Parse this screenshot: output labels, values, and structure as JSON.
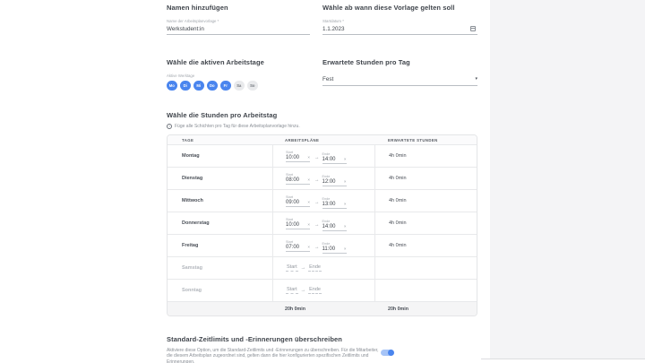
{
  "icons": {
    "close": "×",
    "arrow": "→",
    "caret": "▾",
    "info": "i"
  },
  "colors": {
    "accent_blue": "#4a85ee",
    "chip_inactive_bg": "#e9eaec",
    "toggle_track": "#a6c4f7",
    "side_panel_bg": "#f4f4f6"
  },
  "form": {
    "name_section": {
      "title": "Namen hinzufügen",
      "field_label": "Name der Arbeitsplanvorlage *",
      "field_value": "Werkstudent:in"
    },
    "date_section": {
      "title": "Wähle ab wann diese Vorlage gelten soll",
      "field_label": "Startdatum *",
      "field_value": "1.1.2023"
    },
    "workdays_section": {
      "title": "Wähle die aktiven Arbeitstage",
      "label": "Aktive Werktage",
      "days": [
        {
          "label": "Mo",
          "active": true
        },
        {
          "label": "Di",
          "active": true
        },
        {
          "label": "Mi",
          "active": true
        },
        {
          "label": "Do",
          "active": true
        },
        {
          "label": "Fr",
          "active": true
        },
        {
          "label": "Sa",
          "active": false
        },
        {
          "label": "So",
          "active": false
        }
      ]
    },
    "expected_hours_section": {
      "title": "Erwartete Stunden pro Tag",
      "selected_value": "Fest"
    },
    "hours_section": {
      "title": "Wähle die Stunden pro Arbeitstag",
      "info_text": "Füge alle Schichten pro Tag für diese Arbeitsplanvorlage hinzu."
    },
    "table": {
      "headers": [
        "TAGE",
        "ARBEITSPLÄNE",
        "ERWARTETE STUNDEN"
      ],
      "start_label": "Start",
      "end_label": "Ende",
      "rows": [
        {
          "day": "Montag",
          "start": "10:00",
          "end": "14:00",
          "expected": "4h 0min",
          "active": true
        },
        {
          "day": "Dienstag",
          "start": "08:00",
          "end": "12:00",
          "expected": "4h 0min",
          "active": true
        },
        {
          "day": "Mittwoch",
          "start": "09:00",
          "end": "13:00",
          "expected": "4h 0min",
          "active": true
        },
        {
          "day": "Donnerstag",
          "start": "10:00",
          "end": "14:00",
          "expected": "4h 0min",
          "active": true
        },
        {
          "day": "Freitag",
          "start": "07:00",
          "end": "11:00",
          "expected": "4h 0min",
          "active": true
        },
        {
          "day": "Samstag",
          "start": "",
          "end": "",
          "expected": "",
          "active": false
        },
        {
          "day": "Sonntag",
          "start": "",
          "end": "",
          "expected": "",
          "active": false
        }
      ],
      "totals": {
        "schedules": "20h 0min",
        "expected": "20h 0min"
      }
    },
    "override_section": {
      "title": "Standard-Zeitlimits und -Erinnerungen überschreiben",
      "description": "Aktiviere diese Option, um die Standard-Zeitlimits und -Erinnerungen zu überschreiben. Für die Mitarbeiter, die diesem Arbeitsplan zugeordnet sind, gelten dann die hier konfigurierten spezifischen Zeitlimits und Erinnerungen.",
      "toggle_on": true
    }
  }
}
